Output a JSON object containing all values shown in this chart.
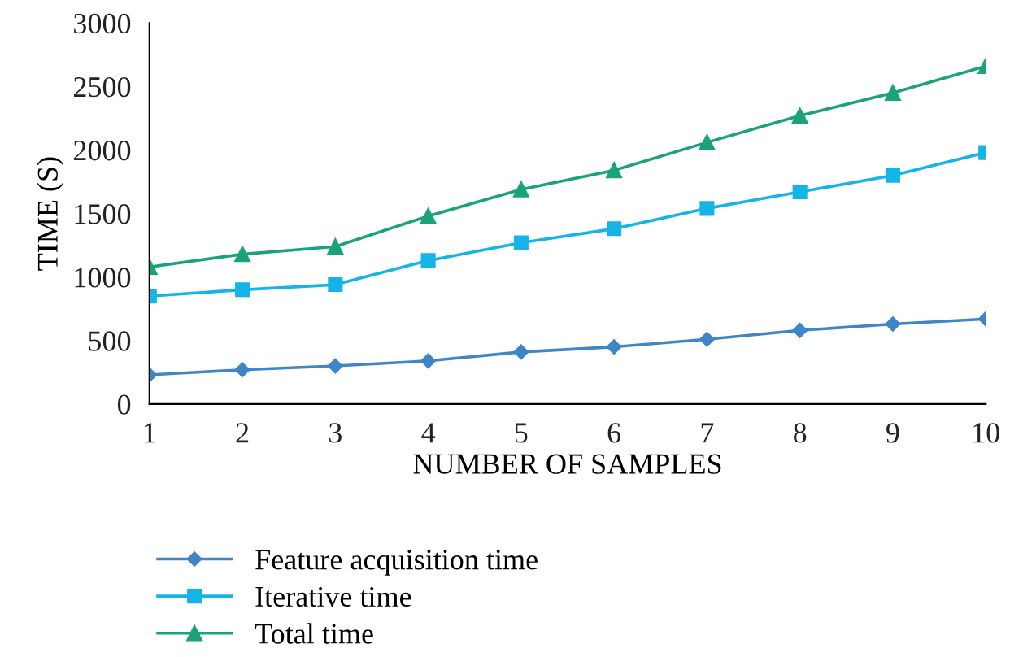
{
  "chart_data": {
    "type": "line",
    "xlabel": "NUMBER OF SAMPLES",
    "ylabel": "TIME (S)",
    "x": [
      1,
      2,
      3,
      4,
      5,
      6,
      7,
      8,
      9,
      10
    ],
    "xlim": [
      1,
      10
    ],
    "xticks": [
      1,
      2,
      3,
      4,
      5,
      6,
      7,
      8,
      9,
      10
    ],
    "ylim": [
      0,
      3000
    ],
    "yticks": [
      0,
      500,
      1000,
      1500,
      2000,
      2500,
      3000
    ],
    "grid": false,
    "legend": "bottom",
    "line_style": "solid",
    "series": [
      {
        "name": "Feature acquisition time",
        "color": "#3f85c8",
        "marker": "diamond",
        "values": [
          230,
          270,
          300,
          340,
          410,
          450,
          510,
          580,
          630,
          670
        ]
      },
      {
        "name": "Iterative time",
        "color": "#14b4e6",
        "marker": "square",
        "values": [
          850,
          900,
          940,
          1130,
          1270,
          1380,
          1540,
          1670,
          1800,
          1980
        ]
      },
      {
        "name": "Total time",
        "color": "#1aa37a",
        "marker": "triangle",
        "values": [
          1080,
          1180,
          1240,
          1480,
          1690,
          1840,
          2060,
          2270,
          2450,
          2660
        ]
      }
    ]
  }
}
